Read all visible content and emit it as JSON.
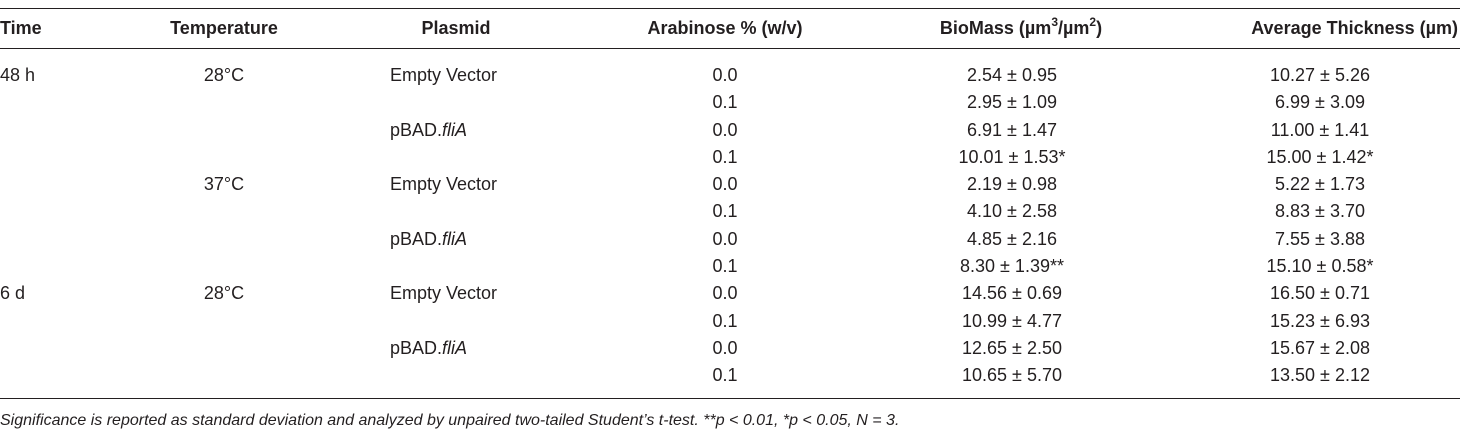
{
  "table": {
    "headers": {
      "time": "Time",
      "temperature": "Temperature",
      "plasmid": "Plasmid",
      "arabinose": "Arabinose % (w/v)",
      "biomass_prefix": "BioMass (µm",
      "biomass_sup1": "3",
      "biomass_mid": "/µm",
      "biomass_sup2": "2",
      "biomass_suffix": ")",
      "thickness": "Average Thickness (µm)"
    },
    "rows": [
      {
        "time": "48 h",
        "temperature": "28°C",
        "plasmid_prefix": "Empty Vector",
        "plasmid_italic": "",
        "arabinose": "0.0",
        "biomass": "2.54 ± 0.95",
        "thickness": "10.27 ± 5.26"
      },
      {
        "time": "",
        "temperature": "",
        "plasmid_prefix": "",
        "plasmid_italic": "",
        "arabinose": "0.1",
        "biomass": "2.95 ± 1.09",
        "thickness": "6.99 ± 3.09"
      },
      {
        "time": "",
        "temperature": "",
        "plasmid_prefix": "pBAD.",
        "plasmid_italic": "fliA",
        "arabinose": "0.0",
        "biomass": "6.91 ± 1.47",
        "thickness": "11.00 ± 1.41"
      },
      {
        "time": "",
        "temperature": "",
        "plasmid_prefix": "",
        "plasmid_italic": "",
        "arabinose": "0.1",
        "biomass": "10.01 ± 1.53*",
        "thickness": "15.00 ± 1.42*"
      },
      {
        "time": "",
        "temperature": "37°C",
        "plasmid_prefix": "Empty Vector",
        "plasmid_italic": "",
        "arabinose": "0.0",
        "biomass": "2.19 ± 0.98",
        "thickness": "5.22 ± 1.73"
      },
      {
        "time": "",
        "temperature": "",
        "plasmid_prefix": "",
        "plasmid_italic": "",
        "arabinose": "0.1",
        "biomass": "4.10 ± 2.58",
        "thickness": "8.83 ± 3.70"
      },
      {
        "time": "",
        "temperature": "",
        "plasmid_prefix": "pBAD.",
        "plasmid_italic": "fliA",
        "arabinose": "0.0",
        "biomass": "4.85 ± 2.16",
        "thickness": "7.55 ± 3.88"
      },
      {
        "time": "",
        "temperature": "",
        "plasmid_prefix": "",
        "plasmid_italic": "",
        "arabinose": "0.1",
        "biomass": "8.30 ± 1.39**",
        "thickness": "15.10 ± 0.58*"
      },
      {
        "time": "6 d",
        "temperature": "28°C",
        "plasmid_prefix": "Empty Vector",
        "plasmid_italic": "",
        "arabinose": "0.0",
        "biomass": "14.56 ± 0.69",
        "thickness": "16.50 ± 0.71"
      },
      {
        "time": "",
        "temperature": "",
        "plasmid_prefix": "",
        "plasmid_italic": "",
        "arabinose": "0.1",
        "biomass": "10.99 ± 4.77",
        "thickness": "15.23 ± 6.93"
      },
      {
        "time": "",
        "temperature": "",
        "plasmid_prefix": "pBAD.",
        "plasmid_italic": "fliA",
        "arabinose": "0.0",
        "biomass": "12.65 ± 2.50",
        "thickness": "15.67 ± 2.08"
      },
      {
        "time": "",
        "temperature": "",
        "plasmid_prefix": "",
        "plasmid_italic": "",
        "arabinose": "0.1",
        "biomass": "10.65 ± 5.70",
        "thickness": "13.50 ± 2.12"
      }
    ],
    "footnote": "Significance is reported as standard deviation and analyzed by unpaired two-tailed Student’s t-test. **p < 0.01, *p < 0.05, N = 3."
  }
}
